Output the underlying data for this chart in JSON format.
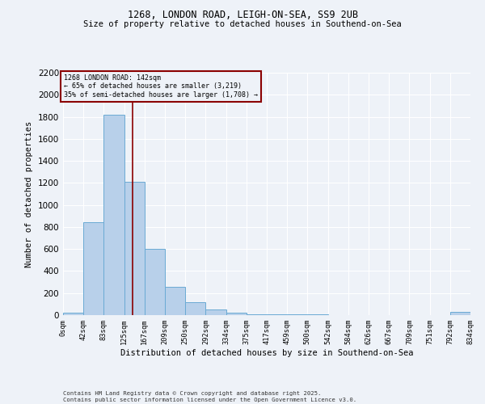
{
  "title_line1": "1268, LONDON ROAD, LEIGH-ON-SEA, SS9 2UB",
  "title_line2": "Size of property relative to detached houses in Southend-on-Sea",
  "xlabel": "Distribution of detached houses by size in Southend-on-Sea",
  "ylabel": "Number of detached properties",
  "bin_edges": [
    0,
    42,
    83,
    125,
    167,
    209,
    250,
    292,
    334,
    375,
    417,
    459,
    500,
    542,
    584,
    626,
    667,
    709,
    751,
    792,
    834
  ],
  "bin_labels": [
    "0sqm",
    "42sqm",
    "83sqm",
    "125sqm",
    "167sqm",
    "209sqm",
    "250sqm",
    "292sqm",
    "334sqm",
    "375sqm",
    "417sqm",
    "459sqm",
    "500sqm",
    "542sqm",
    "584sqm",
    "626sqm",
    "667sqm",
    "709sqm",
    "751sqm",
    "792sqm",
    "834sqm"
  ],
  "bar_heights": [
    20,
    840,
    1820,
    1210,
    600,
    260,
    120,
    50,
    20,
    10,
    8,
    5,
    4,
    3,
    3,
    3,
    2,
    2,
    2,
    30
  ],
  "bar_color": "#b8d0ea",
  "bar_edgecolor": "#6aaad4",
  "vline_color": "#8b0000",
  "vline_x": 142,
  "annotation_text": "1268 LONDON ROAD: 142sqm\n← 65% of detached houses are smaller (3,219)\n35% of semi-detached houses are larger (1,708) →",
  "annotation_box_edgecolor": "#8b0000",
  "ylim": [
    0,
    2200
  ],
  "yticks": [
    0,
    200,
    400,
    600,
    800,
    1000,
    1200,
    1400,
    1600,
    1800,
    2000,
    2200
  ],
  "footer_text": "Contains HM Land Registry data © Crown copyright and database right 2025.\nContains public sector information licensed under the Open Government Licence v3.0.",
  "bg_color": "#eef2f8",
  "grid_color": "#ffffff",
  "font_family": "DejaVu Sans Mono"
}
